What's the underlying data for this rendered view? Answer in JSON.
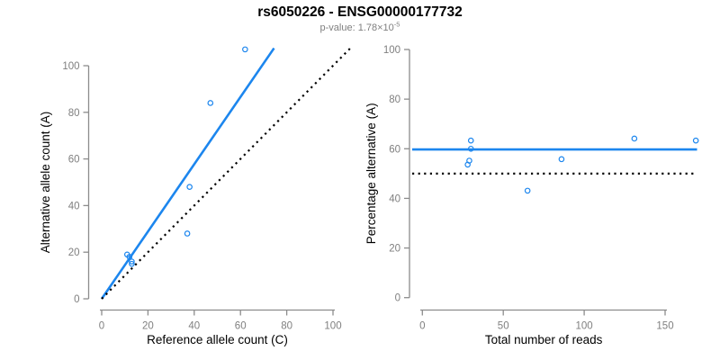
{
  "header": {
    "title": "rs6050226 - ENSG00000177732",
    "subtitle_prefix": "p-value: 1.78×10",
    "subtitle_exponent": "-5"
  },
  "colors": {
    "accent_blue": "#1C86EE",
    "dotted_black": "#000000",
    "axis_gray": "#8C8C8C",
    "tick_label_gray": "#7F7F7F",
    "axis_title_black": "#000000",
    "background": "#FFFFFF"
  },
  "chart_data": [
    {
      "type": "scatter",
      "panel": "left",
      "xlabel": "Reference allele count (C)",
      "ylabel": "Alternative allele count (A)",
      "xlim": [
        0,
        100
      ],
      "ylim": [
        0,
        100
      ],
      "xticks": [
        0,
        20,
        40,
        60,
        80,
        100
      ],
      "yticks": [
        0,
        20,
        40,
        60,
        80,
        100
      ],
      "grid": false,
      "legend": null,
      "points": [
        [
          11,
          19
        ],
        [
          12,
          18
        ],
        [
          13,
          16
        ],
        [
          13,
          15
        ],
        [
          37,
          28
        ],
        [
          38,
          48
        ],
        [
          47,
          84
        ],
        [
          62,
          107
        ]
      ],
      "lines": [
        {
          "name": "regression-line",
          "style": "solid",
          "color": "accent",
          "from": [
            0,
            0
          ],
          "to": [
            74.5,
            107.5
          ]
        },
        {
          "name": "identity-line-y-equals-x",
          "style": "dotted",
          "color": "black",
          "from": [
            0,
            0
          ],
          "to": [
            107.5,
            107.5
          ]
        }
      ]
    },
    {
      "type": "scatter",
      "panel": "right",
      "xlabel": "Total number of reads",
      "ylabel": "Percentage alternative (A)",
      "xlim": [
        0,
        170
      ],
      "ylim": [
        0,
        100
      ],
      "xticks": [
        0,
        50,
        100,
        150
      ],
      "yticks": [
        0,
        20,
        40,
        60,
        80,
        100
      ],
      "grid": false,
      "legend": null,
      "points": [
        [
          30,
          63.3
        ],
        [
          30,
          60
        ],
        [
          29,
          55.2
        ],
        [
          28,
          53.6
        ],
        [
          65,
          43.1
        ],
        [
          86,
          55.8
        ],
        [
          131,
          64.1
        ],
        [
          169,
          63.3
        ]
      ],
      "lines": [
        {
          "name": "mean-percentage-line",
          "style": "solid",
          "color": "accent",
          "y": 59.7
        },
        {
          "name": "fifty-percent-null-line",
          "style": "dotted",
          "color": "black",
          "y": 50
        }
      ]
    }
  ]
}
